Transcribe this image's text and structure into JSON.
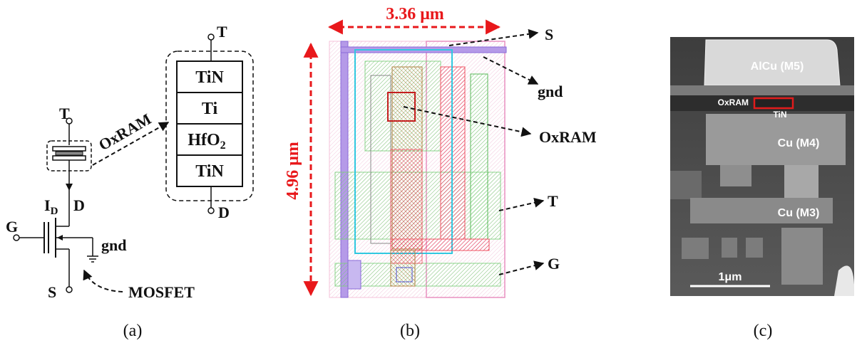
{
  "panel_a": {
    "caption": "(a)",
    "terminal_top": "T",
    "terminal_bottom": "D",
    "oxram_label": "OxRAM",
    "current_label": "I",
    "current_sub": "D",
    "drain_label": "D",
    "gate_label": "G",
    "source_label": "S",
    "gnd_label": "gnd",
    "mosfet_label": "MOSFET",
    "stack": {
      "top_terminal": "T",
      "bottom_terminal": "D",
      "layers": [
        {
          "text": "TiN",
          "sub": ""
        },
        {
          "text": "Ti",
          "sub": ""
        },
        {
          "text": "HfO",
          "sub": "2"
        },
        {
          "text": "TiN",
          "sub": ""
        }
      ]
    }
  },
  "panel_b": {
    "caption": "(b)",
    "width_dim": "3.36 μm",
    "height_dim": "4.96 μm",
    "labels": {
      "s": "S",
      "gnd": "gnd",
      "oxram": "OxRAM",
      "t": "T",
      "g": "G"
    },
    "colors": {
      "dimension": "#e8181b",
      "green": "#8fe08f",
      "red": "#f05060",
      "brown": "#c79a55",
      "purple": "#8a6ad8",
      "cyan": "#30c8e0",
      "pink": "#f0a0c8"
    }
  },
  "panel_c": {
    "caption": "(c)",
    "labels": {
      "m5": "AlCu (M5)",
      "oxram": "OxRAM",
      "tin": "TiN",
      "m4": "Cu (M4)",
      "m3": "Cu (M3)",
      "scale": "1μm"
    },
    "colors": {
      "highlight_box": "#e01c1c"
    }
  }
}
